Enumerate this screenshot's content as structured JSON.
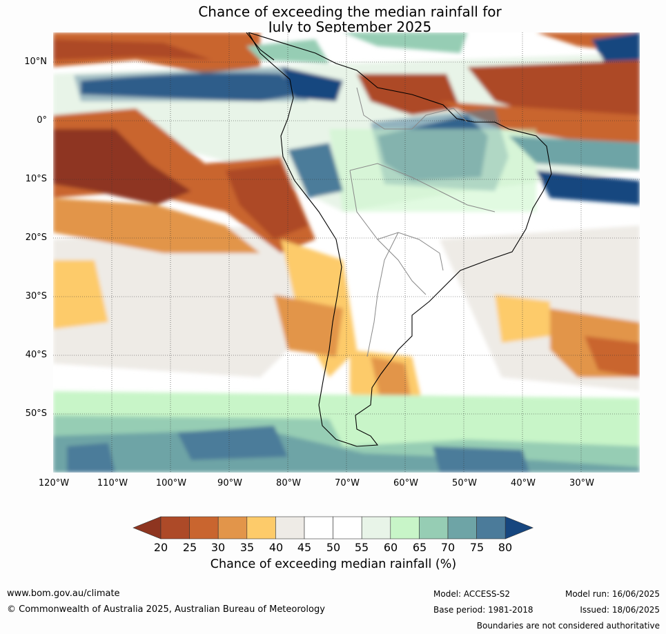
{
  "title": {
    "line1": "Chance of exceeding the median rainfall for",
    "line2": "July to September 2025"
  },
  "map": {
    "lat_labels": [
      "10°N",
      "0°",
      "10°S",
      "20°S",
      "30°S",
      "40°S",
      "50°S"
    ],
    "lon_labels": [
      "120°W",
      "110°W",
      "100°W",
      "90°W",
      "80°W",
      "70°W",
      "60°W",
      "50°W",
      "40°W",
      "30°W"
    ]
  },
  "colorbar": {
    "title": "Chance of exceeding median rainfall (%)",
    "ticks": [
      "20",
      "25",
      "30",
      "35",
      "40",
      "45",
      "50",
      "55",
      "60",
      "65",
      "70",
      "75",
      "80"
    ],
    "colors": [
      "#8e3520",
      "#ad4a28",
      "#c9652f",
      "#e2954a",
      "#fdcb6a",
      "#eeebe6",
      "#ffffff",
      "#ffffff",
      "#e8f4e8",
      "#c8f5c8",
      "#96cdb4",
      "#6ea4a6",
      "#4b7b9a",
      "#16467f"
    ]
  },
  "footer": {
    "website": "www.bom.gov.au/climate",
    "copyright": "© Commonwealth of Australia 2025, Australian Bureau of Meteorology",
    "model": "Model: ACCESS-S2",
    "base_period": "Base period: 1981-2018",
    "model_run": "Model run: 16/06/2025",
    "issued": "Issued: 18/06/2025",
    "disclaimer": "Boundaries are not considered authoritative"
  }
}
